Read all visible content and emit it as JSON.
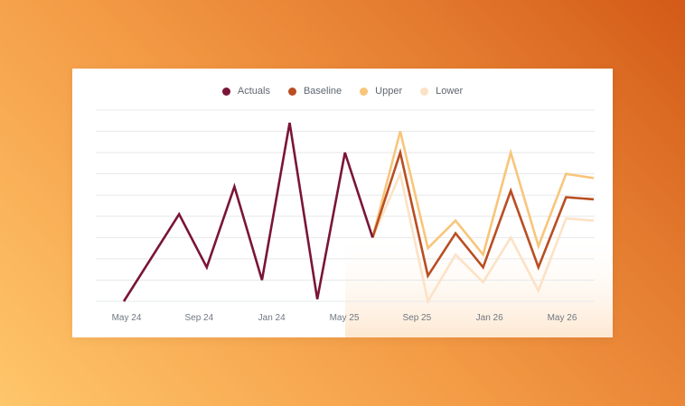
{
  "chart_data": {
    "type": "line",
    "title": "",
    "xlabel": "",
    "ylabel": "",
    "legend_position": "top-center",
    "grid": true,
    "x_tick_labels": [
      "May 24",
      "Sep 24",
      "Jan 24",
      "May 25",
      "Sep 25",
      "Jan 26",
      "May 26"
    ],
    "ylim": [
      0,
      9
    ],
    "series": [
      {
        "name": "Actuals",
        "color": "#7a1537",
        "x": [
          0,
          2,
          3,
          4,
          5,
          6,
          7,
          8,
          9,
          9
        ],
        "values": [
          0,
          4.1,
          1.6,
          5.4,
          1.0,
          8.4,
          0.1,
          7.0,
          3.0,
          3.0
        ]
      },
      {
        "name": "Baseline",
        "color": "#b94e22",
        "x": [
          9,
          10,
          11,
          12,
          13,
          14,
          15,
          16,
          17
        ],
        "values": [
          3.0,
          7.0,
          1.2,
          3.2,
          1.6,
          5.2,
          1.6,
          4.9,
          4.8
        ]
      },
      {
        "name": "Upper",
        "color": "#f8c57a",
        "x": [
          9,
          10,
          11,
          12,
          13,
          14,
          15,
          16,
          17
        ],
        "values": [
          3.0,
          8.0,
          2.5,
          3.8,
          2.2,
          7.0,
          2.6,
          6.0,
          5.8
        ]
      },
      {
        "name": "Lower",
        "color": "#fce2c5",
        "x": [
          9,
          10,
          11,
          12,
          13,
          14,
          15,
          16,
          17
        ],
        "values": [
          3.0,
          6.0,
          0,
          2.2,
          0.9,
          3.0,
          0.5,
          3.9,
          3.8
        ]
      }
    ]
  }
}
